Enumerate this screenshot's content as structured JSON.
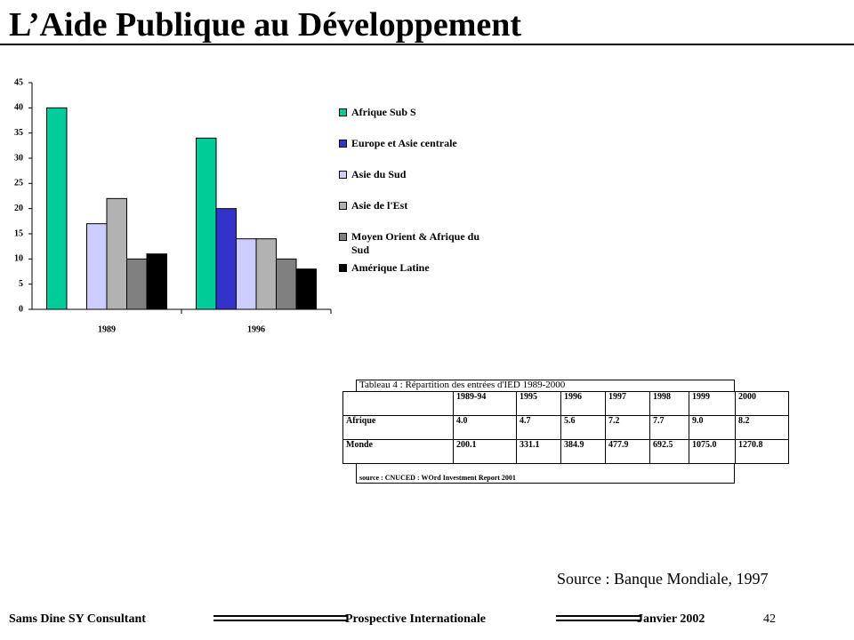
{
  "header": {
    "title": "L’Aide Publique au Développement"
  },
  "chart_data": {
    "type": "bar",
    "categories": [
      "1989",
      "1996"
    ],
    "series": [
      {
        "name": "Afrique Sub S",
        "color": "#00cc99",
        "values": [
          40,
          34
        ]
      },
      {
        "name": "Europe et Asie centrale",
        "color": "#3333cc",
        "values": [
          null,
          20
        ]
      },
      {
        "name": "Asie du Sud",
        "color": "#ccccff",
        "values": [
          17,
          14
        ]
      },
      {
        "name": "Asie de l'Est",
        "color": "#b2b2b2",
        "values": [
          22,
          14
        ]
      },
      {
        "name": "Moyen Orient & Afrique du Sud",
        "color": "#808080",
        "values": [
          10,
          10
        ]
      },
      {
        "name": "Amérique Latine",
        "color": "#000000",
        "values": [
          11,
          8
        ]
      }
    ],
    "ylim": [
      0,
      45
    ],
    "yticks": [
      0,
      5,
      10,
      15,
      20,
      25,
      30,
      35,
      40,
      45
    ],
    "legend": "right"
  },
  "table": {
    "title": "Tableau 4 : Répartition des entrées d'IED 1989-2000",
    "columns": [
      "",
      "1989-94",
      "1995",
      "1996",
      "1997",
      "1998",
      "1999",
      "2000"
    ],
    "rows": [
      [
        "Afrique",
        "4.0",
        "4.7",
        "5.6",
        "7.2",
        "7.7",
        "9.0",
        "8.2"
      ],
      [
        "Monde",
        "200.1",
        "331.1",
        "384.9",
        "477.9",
        "692.5",
        "1075.0",
        "1270.8"
      ]
    ],
    "source": "source : CNUCED : WOrd Investment Report 2001"
  },
  "source": "Source : Banque Mondiale, 1997",
  "footer": {
    "author": "Sams Dine SY Consultant",
    "topic": "Prospective Internationale",
    "date": "Janvier 2002",
    "page": "42"
  }
}
